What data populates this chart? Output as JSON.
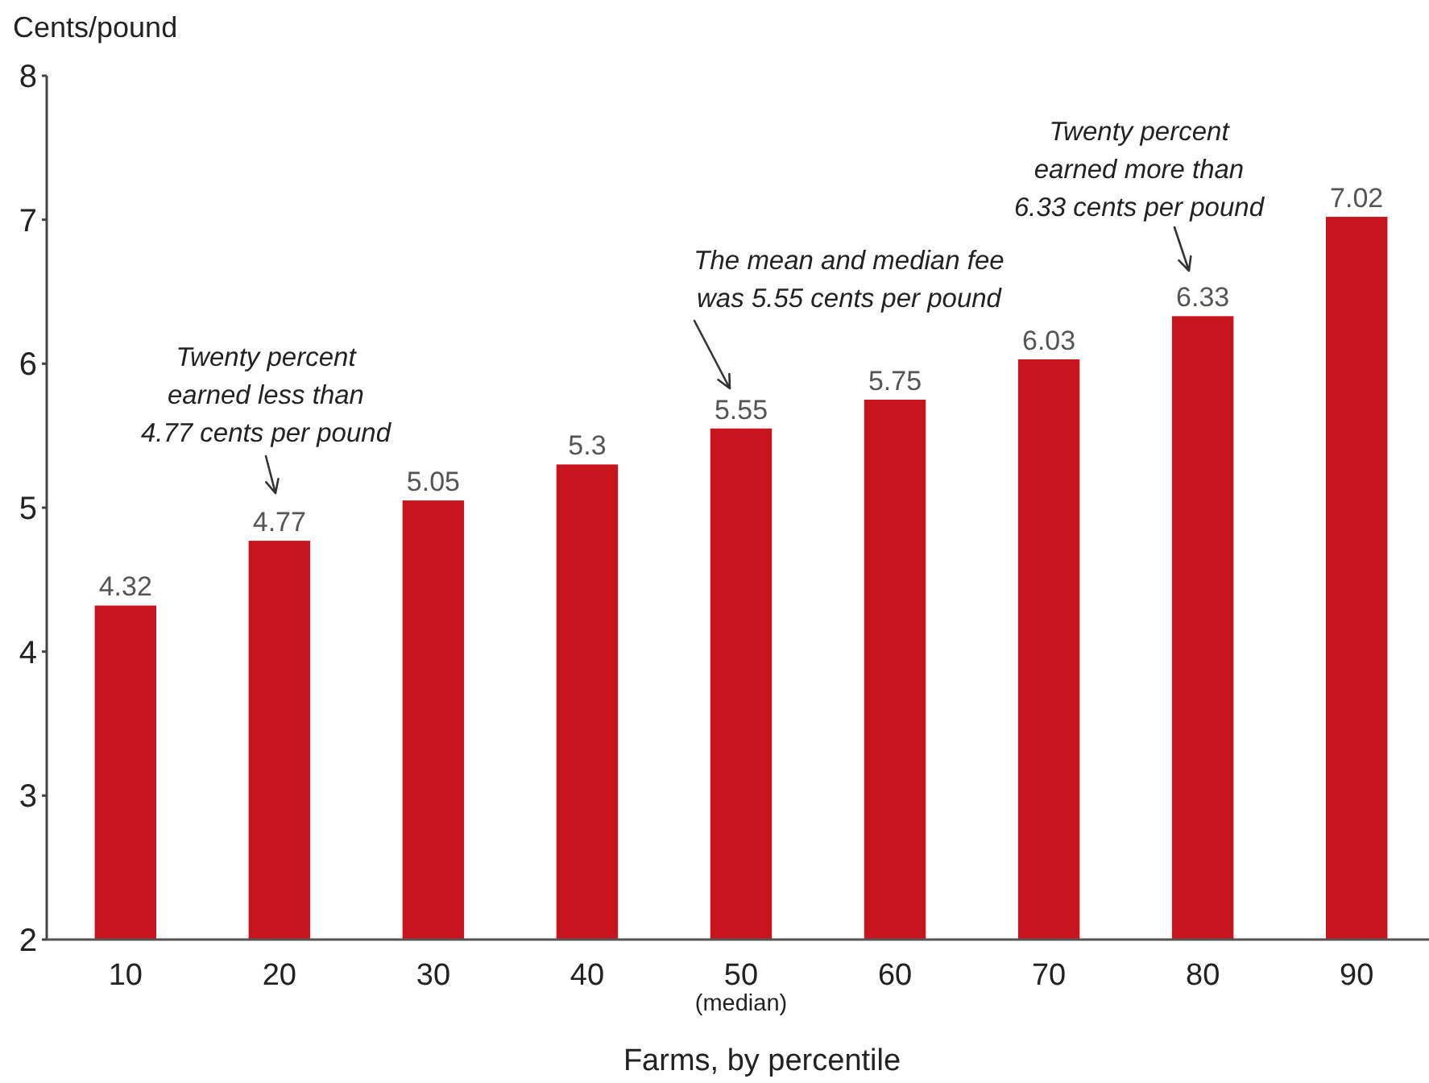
{
  "chart_data": {
    "type": "bar",
    "ylabel": "Cents/pound",
    "xlabel": "Farms, by percentile",
    "categories": [
      "10",
      "20",
      "30",
      "40",
      "50\n(median)",
      "60",
      "70",
      "80",
      "90"
    ],
    "values": [
      4.32,
      4.77,
      5.05,
      5.3,
      5.55,
      5.75,
      6.03,
      6.33,
      7.02
    ],
    "color": "#c8141e",
    "ylim": [
      2,
      8
    ],
    "yticks": [
      2,
      3,
      4,
      5,
      6,
      7,
      8
    ],
    "data_labels": true,
    "annotations": [
      "Twenty percent\nearned less than\n4.77 cents per pound",
      "The mean and median fee\nwas 5.55 cents per pound",
      "Twenty percent\nearned more than\n6.33 cents per pound"
    ]
  }
}
